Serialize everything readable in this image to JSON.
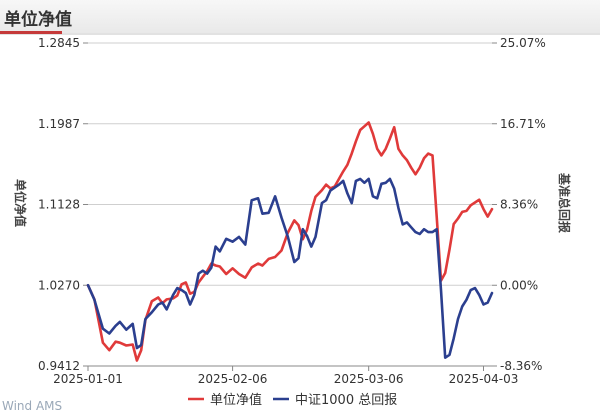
{
  "header": {
    "title": "单位净值"
  },
  "watermark": "Wind AMS",
  "chart_data": {
    "type": "line",
    "title": "单位净值",
    "ylabel_left": "单位净值",
    "ylabel_right": "基准总回报",
    "left_axis": {
      "ticks": [
        "1.2845",
        "1.1987",
        "1.1128",
        "1.0270",
        "0.9412"
      ],
      "range": [
        0.9412,
        1.2845
      ]
    },
    "right_axis": {
      "ticks": [
        "25.07%",
        "16.71%",
        "8.36%",
        "0.00%",
        "-8.36%"
      ],
      "range": [
        -8.36,
        25.07
      ],
      "unit": "%"
    },
    "x_ticks": [
      "2025-01-01",
      "2025-02-06",
      "2025-03-06",
      "2025-04-03"
    ],
    "grid": true,
    "legend_position": "bottom",
    "colors": {
      "nav": "#e03a3a",
      "benchmark": "#2b3f8f",
      "grid": "#cfcfcf",
      "axis_text": "#333333"
    },
    "series": [
      {
        "name": "单位净值",
        "axis": "left",
        "x": [
          0,
          3,
          7,
          10,
          13,
          15,
          18,
          21,
          23,
          25,
          27,
          30,
          33,
          35,
          37,
          40,
          42,
          44,
          46,
          48,
          50,
          52,
          54,
          56,
          58,
          60,
          62,
          65,
          68,
          71,
          74,
          77,
          80,
          82,
          85,
          88,
          91,
          94,
          97,
          99,
          101,
          103,
          105,
          107,
          110,
          112,
          114,
          116,
          118,
          120,
          122,
          124,
          126,
          128,
          130,
          132,
          134,
          136,
          138,
          140,
          142,
          144,
          146,
          148,
          150,
          152,
          154,
          156,
          158,
          160,
          162,
          164,
          166,
          168,
          170,
          172,
          174,
          176,
          178,
          180,
          182,
          184,
          186,
          188,
          190
        ],
        "values": [
          1.027,
          1.012,
          0.966,
          0.958,
          0.967,
          0.966,
          0.963,
          0.964,
          0.947,
          0.958,
          0.99,
          1.01,
          1.014,
          1.008,
          1.012,
          1.013,
          1.016,
          1.028,
          1.03,
          1.018,
          1.02,
          1.03,
          1.036,
          1.042,
          1.05,
          1.048,
          1.047,
          1.039,
          1.045,
          1.039,
          1.035,
          1.046,
          1.05,
          1.048,
          1.055,
          1.057,
          1.064,
          1.083,
          1.096,
          1.091,
          1.076,
          1.086,
          1.106,
          1.121,
          1.128,
          1.134,
          1.13,
          1.132,
          1.14,
          1.148,
          1.155,
          1.167,
          1.18,
          1.192,
          1.196,
          1.2,
          1.188,
          1.172,
          1.165,
          1.172,
          1.183,
          1.195,
          1.172,
          1.165,
          1.16,
          1.152,
          1.145,
          1.152,
          1.162,
          1.167,
          1.165,
          1.1,
          1.032,
          1.04,
          1.065,
          1.092,
          1.098,
          1.105,
          1.106,
          1.112,
          1.115,
          1.118,
          1.108,
          1.1,
          1.108
        ]
      },
      {
        "name": "中证1000 总回报",
        "axis": "right",
        "x": [
          0,
          3,
          7,
          10,
          13,
          15,
          18,
          21,
          23,
          25,
          27,
          30,
          33,
          35,
          37,
          40,
          42,
          44,
          46,
          48,
          50,
          52,
          54,
          56,
          58,
          60,
          62,
          65,
          68,
          71,
          74,
          77,
          80,
          82,
          85,
          88,
          91,
          94,
          97,
          99,
          101,
          103,
          105,
          107,
          110,
          112,
          114,
          116,
          118,
          120,
          122,
          124,
          126,
          128,
          130,
          132,
          134,
          136,
          138,
          140,
          142,
          144,
          146,
          148,
          150,
          152,
          154,
          156,
          158,
          160,
          162,
          164,
          166,
          168,
          170,
          172,
          174,
          176,
          178,
          180,
          182,
          184,
          186,
          188,
          190
        ],
        "values": [
          0.0,
          -1.5,
          -4.5,
          -5.0,
          -4.2,
          -3.8,
          -4.6,
          -4.0,
          -6.5,
          -6.2,
          -3.5,
          -2.8,
          -2.0,
          -1.8,
          -2.5,
          -1.0,
          -0.3,
          -0.5,
          -0.8,
          -2.0,
          -1.0,
          1.2,
          1.5,
          1.2,
          1.8,
          4.0,
          3.5,
          4.8,
          4.5,
          5.0,
          4.2,
          8.8,
          9.0,
          7.4,
          7.5,
          9.2,
          7.0,
          5.0,
          2.4,
          2.8,
          5.8,
          5.1,
          4.0,
          5.0,
          8.5,
          8.8,
          9.8,
          10.1,
          10.4,
          10.8,
          9.5,
          8.5,
          10.8,
          11.0,
          10.6,
          11.0,
          9.2,
          9.0,
          10.5,
          10.6,
          11.0,
          10.0,
          8.0,
          6.3,
          6.5,
          6.0,
          5.5,
          5.3,
          5.8,
          5.5,
          5.5,
          5.8,
          -0.5,
          -7.5,
          -7.2,
          -5.5,
          -3.5,
          -2.2,
          -1.5,
          -0.5,
          -0.3,
          -1.0,
          -2.0,
          -1.8,
          -0.8
        ]
      }
    ]
  },
  "legend": {
    "items": [
      "单位净值",
      "中证1000 总回报"
    ]
  }
}
